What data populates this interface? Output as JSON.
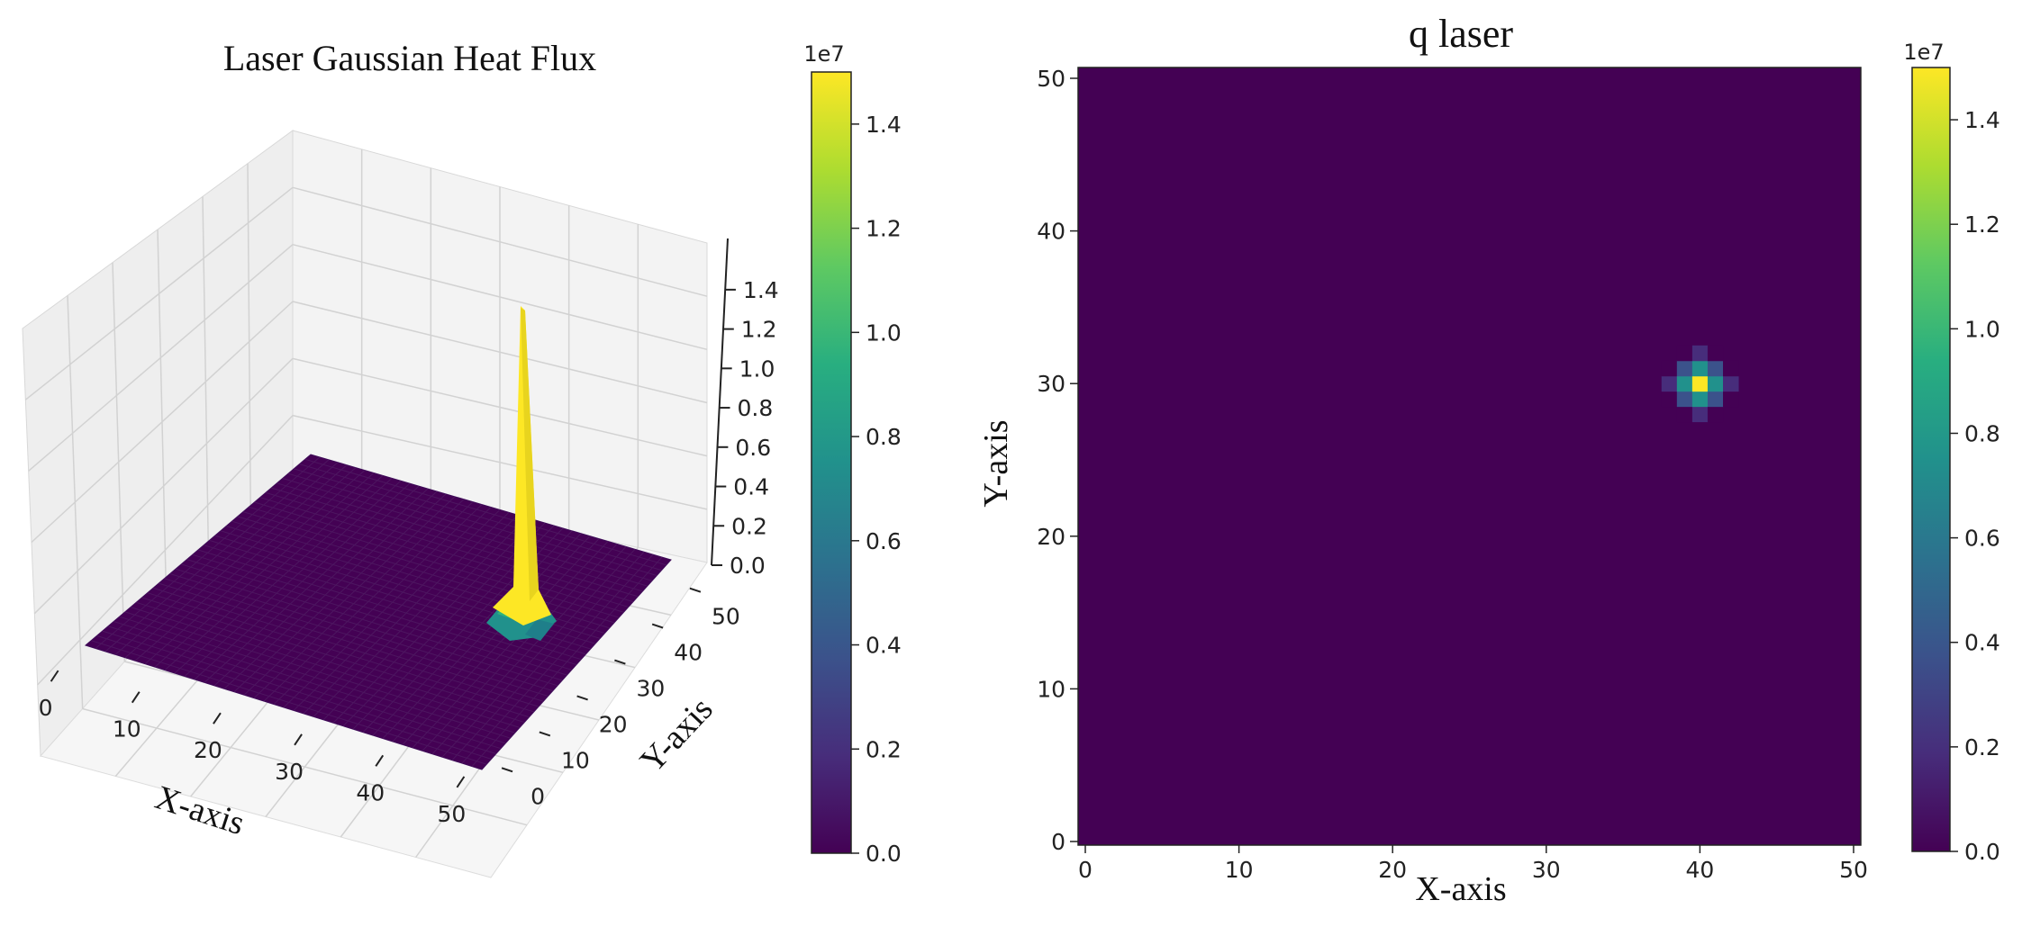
{
  "chart_data": [
    {
      "type": "surface3d",
      "title": "Laser Gaussian Heat Flux",
      "xlabel": "X-axis",
      "ylabel": "Y-axis",
      "xticks": [
        0,
        10,
        20,
        30,
        40,
        50
      ],
      "yticks": [
        0,
        10,
        20,
        30,
        40,
        50
      ],
      "zticks": [
        "0.0",
        "0.2",
        "0.4",
        "0.6",
        "0.8",
        "1.0",
        "1.2",
        "1.4"
      ],
      "xlim": [
        0,
        50
      ],
      "ylim": [
        0,
        50
      ],
      "zlim": [
        0,
        15000000.0
      ],
      "grid": true,
      "colormap": "viridis",
      "peak": {
        "x": 40,
        "y": 30,
        "value": 15000000.0
      },
      "colorbar": {
        "ticks": [
          "0.0",
          "0.2",
          "0.4",
          "0.6",
          "0.8",
          "1.0",
          "1.2",
          "1.4"
        ],
        "exponent_label": "1e7",
        "range": [
          0,
          15000000.0
        ]
      }
    },
    {
      "type": "heatmap",
      "title": "q laser",
      "xlabel": "X-axis",
      "ylabel": "Y-axis",
      "xticks": [
        0,
        10,
        20,
        30,
        40,
        50
      ],
      "yticks": [
        0,
        10,
        20,
        30,
        40,
        50
      ],
      "xlim": [
        0,
        50
      ],
      "ylim": [
        0,
        50
      ],
      "colormap": "viridis",
      "peak": {
        "x": 40,
        "y": 30,
        "value": 15000000.0
      },
      "colorbar": {
        "ticks": [
          "0.0",
          "0.2",
          "0.4",
          "0.6",
          "0.8",
          "1.0",
          "1.2",
          "1.4"
        ],
        "exponent_label": "1e7",
        "range": [
          0,
          15000000.0
        ]
      }
    }
  ],
  "colors": {
    "background": "#440154",
    "viridis": [
      "#440154",
      "#472d7b",
      "#3b528b",
      "#2c728e",
      "#21918c",
      "#28ae80",
      "#5ec962",
      "#addc30",
      "#fde725"
    ]
  }
}
